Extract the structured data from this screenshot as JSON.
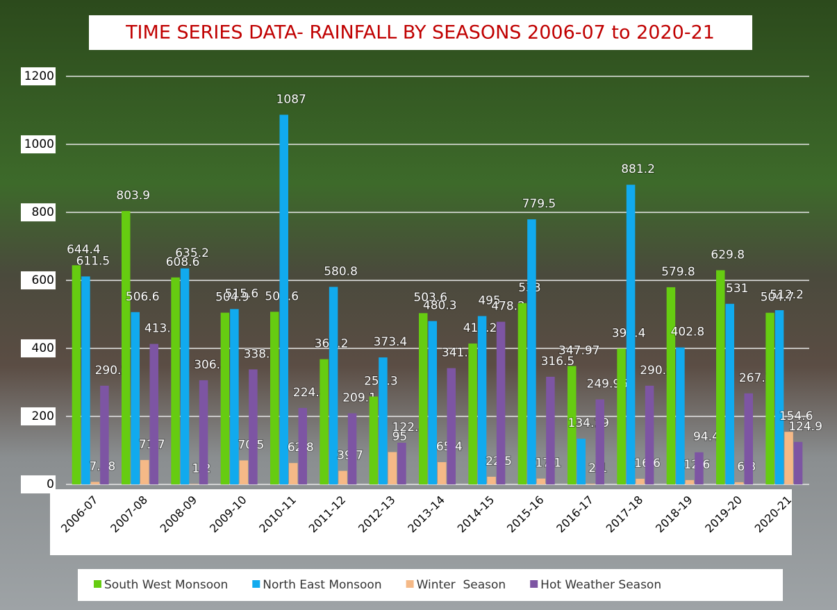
{
  "chart_data": {
    "type": "bar",
    "title": "TIME SERIES DATA- RAINFALL BY SEASONS 2006-07 to 2020-21",
    "categories": [
      "2006-07",
      "2007-08",
      "2008-09",
      "2009-10",
      "2010-11",
      "2011-12",
      "2012-13",
      "2013-14",
      "2014-15",
      "2015-16",
      "2016-17",
      "2017-18",
      "2018-19",
      "2019-20",
      "2020-21"
    ],
    "series": [
      {
        "name": "South West Monsoon",
        "color": "#66cc11",
        "values": [
          644.4,
          803.9,
          608.6,
          504.9,
          507.6,
          368.2,
          258.3,
          503.6,
          414.2,
          533,
          347.97,
          399.4,
          579.8,
          629.8,
          504.7
        ]
      },
      {
        "name": "North East Monsoon",
        "color": "#11aaee",
        "values": [
          611.5,
          506.6,
          635.2,
          515.6,
          1087,
          580.8,
          373.4,
          480.3,
          495,
          779.5,
          134.19,
          881.2,
          402.8,
          531,
          512.2
        ]
      },
      {
        "name": "Winter  Season",
        "color": "#f5b987",
        "values": [
          7.38,
          71.7,
          1.2,
          70.5,
          62.8,
          39.7,
          95,
          65.4,
          22.5,
          17.1,
          2.1,
          16.6,
          12.6,
          6.3,
          154.6
        ]
      },
      {
        "name": "Hot Weather Season",
        "color": "#7d55a3",
        "values": [
          290.2,
          413.1,
          306.3,
          338.1,
          224.8,
          209.1,
          122.5,
          341.8,
          478.2,
          316.5,
          249.96,
          290.2,
          94.4,
          267.7,
          124.9
        ]
      }
    ],
    "ylim": [
      0,
      1200
    ],
    "yticks": [
      0,
      200,
      400,
      600,
      800,
      1000,
      1200
    ],
    "grid": true,
    "legend": "bottom"
  }
}
